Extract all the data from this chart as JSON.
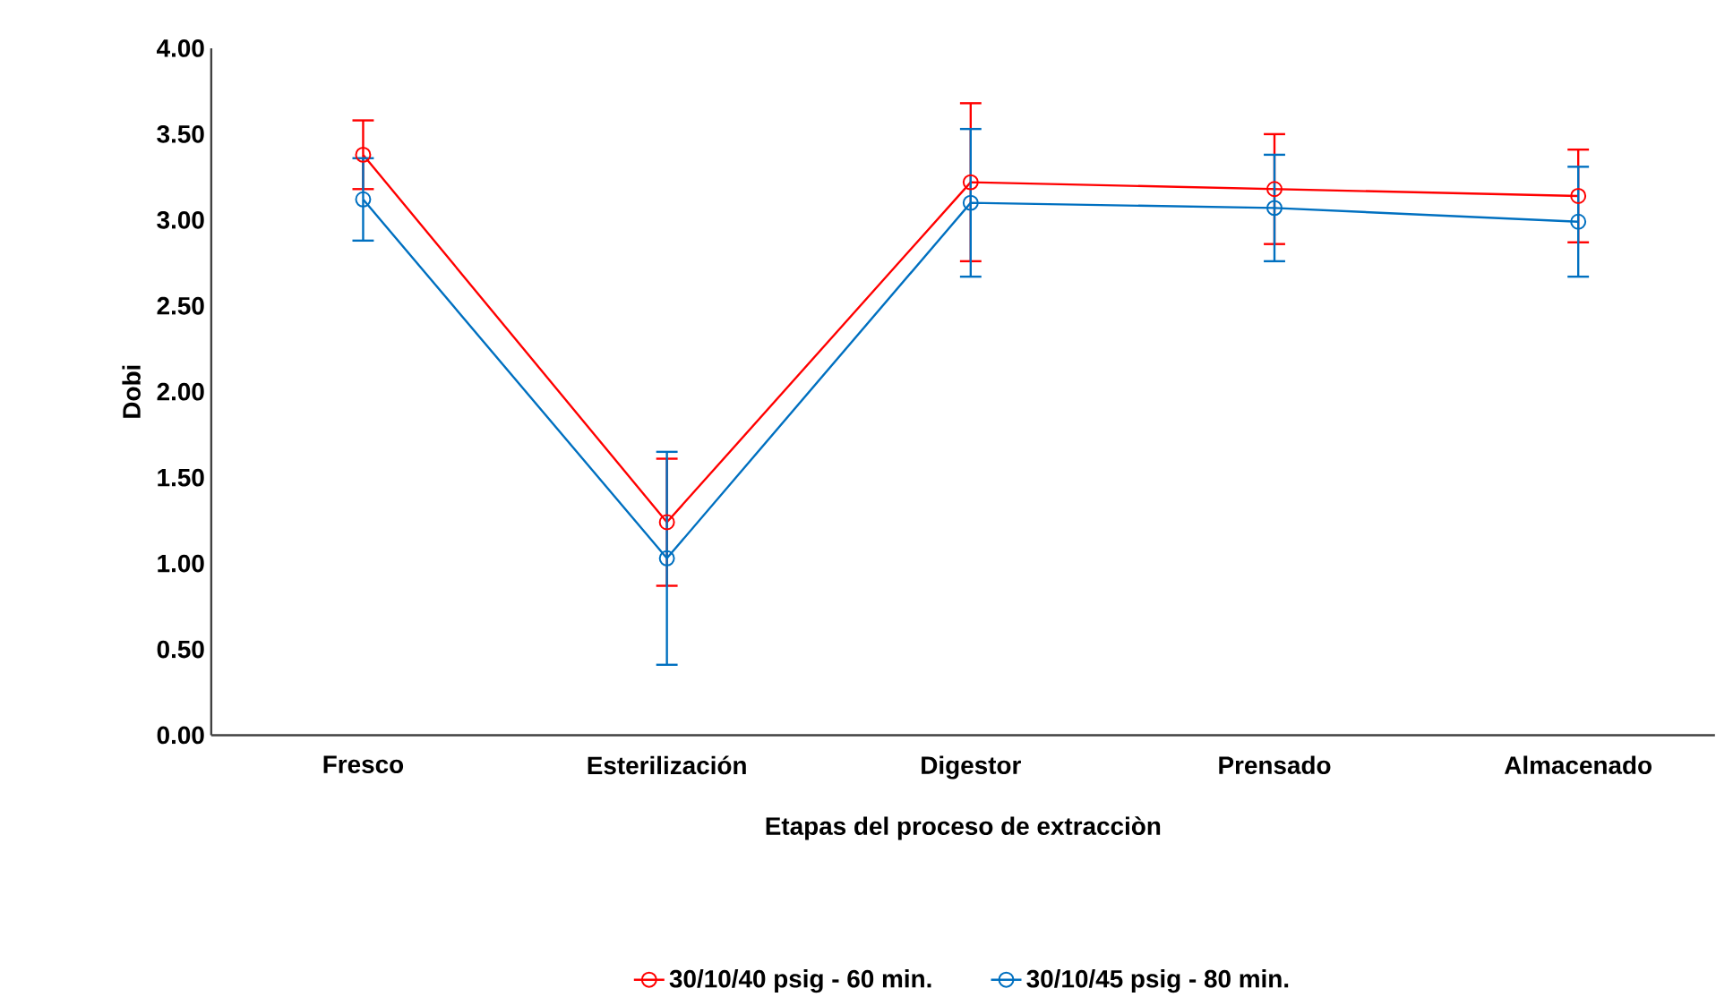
{
  "chart_data": {
    "type": "line",
    "xlabel": "Etapas del proceso de extracciòn",
    "ylabel": "Dobi",
    "categories": [
      "Fresco",
      "Esterilización",
      "Digestor",
      "Prensado",
      "Almacenado"
    ],
    "series": [
      {
        "name": "30/10/40 psig - 60 min.",
        "color": "#ff0000",
        "values": [
          3.38,
          1.24,
          3.22,
          3.18,
          3.14
        ],
        "errors": [
          0.2,
          0.37,
          0.46,
          0.32,
          0.27
        ]
      },
      {
        "name": "30/10/45 psig - 80 min.",
        "color": "#0070c0",
        "values": [
          3.12,
          1.03,
          3.1,
          3.07,
          2.99
        ],
        "errors": [
          0.24,
          0.62,
          0.43,
          0.31,
          0.32
        ]
      }
    ],
    "ylim": [
      0,
      4
    ],
    "yticks": [
      {
        "value": 0,
        "label": "0.00"
      },
      {
        "value": 0.5,
        "label": "0.50"
      },
      {
        "value": 1,
        "label": "1.00"
      },
      {
        "value": 1.5,
        "label": "1.50"
      },
      {
        "value": 2,
        "label": "2.00"
      },
      {
        "value": 2.5,
        "label": "2.50"
      },
      {
        "value": 3,
        "label": "3.00"
      },
      {
        "value": 3.5,
        "label": "3.50"
      },
      {
        "value": 4,
        "label": "4.00"
      }
    ],
    "marker": "circle",
    "line_style": "solid",
    "legend": "bottom",
    "grid": false
  }
}
